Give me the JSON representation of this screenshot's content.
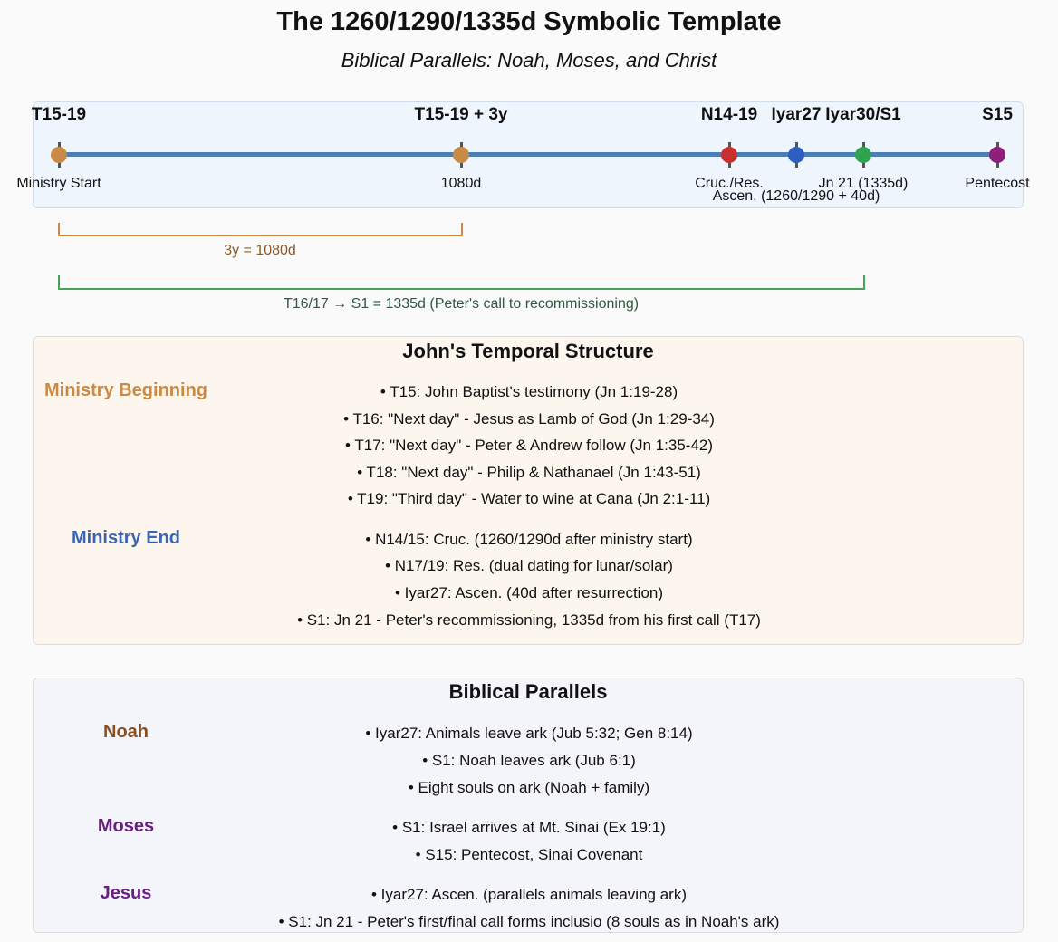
{
  "header": {
    "title": "The 1260/1290/1335d Symbolic Template",
    "subtitle": "Biblical Parallels: Noah, Moses, and Christ"
  },
  "timeline": {
    "line_color": "#4a7fb8",
    "markers": [
      {
        "top_label": "T15-19",
        "bottom_label": "Ministry Start",
        "color": "#c98a45"
      },
      {
        "top_label": "T15-19 + 3y",
        "bottom_label": "1080d",
        "color": "#c98a45"
      },
      {
        "top_label": "N14-19",
        "bottom_label": "Cruc./Res.",
        "color": "#c83030"
      },
      {
        "top_label": "Iyar27",
        "bottom_label": "Ascen. (1260/1290 + 40d)",
        "color": "#2e5fbf"
      },
      {
        "top_label": "Iyar30/S1",
        "bottom_label": "Jn 21 (1335d)",
        "color": "#2ea44f"
      },
      {
        "top_label": "S15",
        "bottom_label": "Pentecost",
        "color": "#8e1f7a"
      }
    ],
    "spans": [
      {
        "label": "3y = 1080d",
        "color": "#c98a45",
        "text_color": "#8a5a2a"
      },
      {
        "label": "T16/17 → S1 = 1335d (Peter's call to recommissioning)",
        "color": "#4aa35a",
        "text_color": "#2e5a40"
      }
    ]
  },
  "johns_structure": {
    "title": "John's Temporal Structure",
    "groups": [
      {
        "label": "Ministry Beginning",
        "color": "#c98a45",
        "items": [
          "• T15: John Baptist's testimony (Jn 1:19-28)",
          "• T16: \"Next day\" - Jesus as Lamb of God (Jn 1:29-34)",
          "• T17: \"Next day\" - Peter & Andrew follow (Jn 1:35-42)",
          "• T18: \"Next day\" - Philip & Nathanael (Jn 1:43-51)",
          "• T19: \"Third day\" - Water to wine at Cana (Jn 2:1-11)"
        ]
      },
      {
        "label": "Ministry End",
        "color": "#3a65b0",
        "items": [
          "• N14/15: Cruc. (1260/1290d after ministry start)",
          "• N17/19: Res. (dual dating for lunar/solar)",
          "• Iyar27: Ascen. (40d after resurrection)",
          "• S1: Jn 21 - Peter's recommissioning, 1335d from his first call (T17)"
        ]
      }
    ]
  },
  "parallels": {
    "title": "Biblical Parallels",
    "groups": [
      {
        "label": "Noah",
        "color": "#8a4f1e",
        "items": [
          "• Iyar27: Animals leave ark (Jub 5:32; Gen 8:14)",
          "• S1: Noah leaves ark (Jub 6:1)",
          "• Eight souls on ark (Noah + family)"
        ]
      },
      {
        "label": "Moses",
        "color": "#6a2080",
        "items": [
          "• S1: Israel arrives at Mt. Sinai (Ex 19:1)",
          "• S15: Pentecost, Sinai Covenant"
        ]
      },
      {
        "label": "Jesus",
        "color": "#6a2080",
        "items": [
          "• Iyar27: Ascen. (parallels animals leaving ark)",
          "• S1: Jn 21 - Peter's first/final call forms inclusio (8 souls as in Noah's ark)"
        ]
      }
    ]
  }
}
